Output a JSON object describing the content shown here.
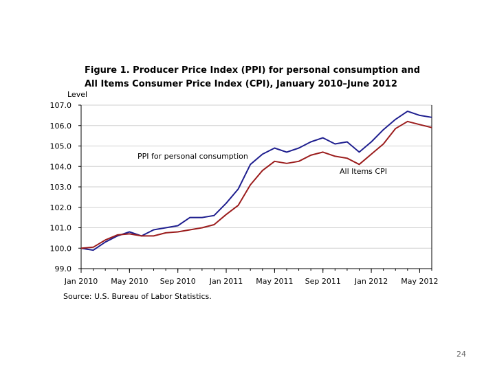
{
  "chart_data": {
    "type": "line",
    "title_line1": "Figure 1. Producer  Price Index (PPI) for personal consumption and",
    "title_line2": "All Items Consumer Price Index (CPI), January  2010–June 2012",
    "ylabel": "Level",
    "ylim": [
      99.0,
      107.0
    ],
    "y_ticks": [
      "99.0",
      "100.0",
      "101.0",
      "102.0",
      "103.0",
      "104.0",
      "105.0",
      "106.0",
      "107.0"
    ],
    "x_ticks": [
      {
        "index": 0,
        "label": "Jan 2010"
      },
      {
        "index": 4,
        "label": "May 2010"
      },
      {
        "index": 8,
        "label": "Sep 2010"
      },
      {
        "index": 12,
        "label": "Jan 2011"
      },
      {
        "index": 16,
        "label": "May 2011"
      },
      {
        "index": 20,
        "label": "Sep 2011"
      },
      {
        "index": 24,
        "label": "Jan 2012"
      },
      {
        "index": 28,
        "label": "May 2012"
      }
    ],
    "x": [
      "Jan 2010",
      "Feb 2010",
      "Mar 2010",
      "Apr 2010",
      "May 2010",
      "Jun 2010",
      "Jul 2010",
      "Aug 2010",
      "Sep 2010",
      "Oct 2010",
      "Nov 2010",
      "Dec 2010",
      "Jan 2011",
      "Feb 2011",
      "Mar 2011",
      "Apr 2011",
      "May 2011",
      "Jun 2011",
      "Jul 2011",
      "Aug 2011",
      "Sep 2011",
      "Oct 2011",
      "Nov 2011",
      "Dec 2011",
      "Jan 2012",
      "Feb 2012",
      "Mar 2012",
      "Apr 2012",
      "May 2012",
      "Jun 2012"
    ],
    "series": [
      {
        "name": "PPI for personal consumption",
        "color": "#1f1f8f",
        "values": [
          100.0,
          99.9,
          100.3,
          100.6,
          100.8,
          100.6,
          100.9,
          101.0,
          101.1,
          101.5,
          101.5,
          101.6,
          102.2,
          102.9,
          104.1,
          104.6,
          104.9,
          104.7,
          104.9,
          105.2,
          105.4,
          105.1,
          105.2,
          104.7,
          105.2,
          105.8,
          106.3,
          106.7,
          106.5,
          106.4
        ]
      },
      {
        "name": "All Items CPI",
        "color": "#9b1c1c",
        "values": [
          100.0,
          100.05,
          100.4,
          100.65,
          100.7,
          100.6,
          100.6,
          100.75,
          100.8,
          100.9,
          101.0,
          101.15,
          101.65,
          102.1,
          103.1,
          103.8,
          104.25,
          104.15,
          104.25,
          104.55,
          104.7,
          104.5,
          104.4,
          104.1,
          104.6,
          105.1,
          105.85,
          106.2,
          106.05,
          105.9
        ]
      }
    ],
    "series_labels": [
      "PPI for personal consumption",
      "All Items CPI"
    ],
    "grid": true
  },
  "source": "Source: U.S. Bureau  of Labor Statistics.",
  "page_number": "24"
}
